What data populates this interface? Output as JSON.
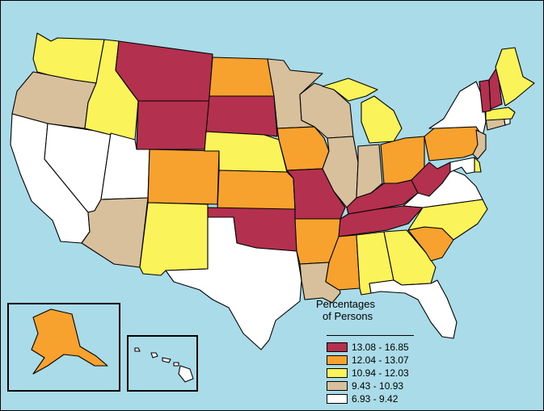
{
  "colors": {
    "background": "#a9dce8",
    "class_1": "#b3304f",
    "class_2": "#f7a22e",
    "class_3": "#fbf35a",
    "class_4": "#d8c09c",
    "class_5": "#ffffff"
  },
  "legend": {
    "title_line1": "Percentages",
    "title_line2": "of Persons",
    "items": [
      {
        "label": "13.08 - 16.85",
        "color": "#b3304f"
      },
      {
        "label": "12.04 - 13.07",
        "color": "#f7a22e"
      },
      {
        "label": "10.94 - 12.03",
        "color": "#fbf35a"
      },
      {
        "label": "9.43 - 10.93",
        "color": "#d8c09c"
      },
      {
        "label": "6.93 - 9.42",
        "color": "#ffffff"
      }
    ]
  },
  "states": [
    {
      "id": "WA",
      "class": 3
    },
    {
      "id": "OR",
      "class": 4
    },
    {
      "id": "CA",
      "class": 5
    },
    {
      "id": "ID",
      "class": 3
    },
    {
      "id": "NV",
      "class": 5
    },
    {
      "id": "MT",
      "class": 1
    },
    {
      "id": "WY",
      "class": 1
    },
    {
      "id": "UT",
      "class": 5
    },
    {
      "id": "AZ",
      "class": 4
    },
    {
      "id": "CO",
      "class": 2
    },
    {
      "id": "NM",
      "class": 3
    },
    {
      "id": "ND",
      "class": 2
    },
    {
      "id": "SD",
      "class": 1
    },
    {
      "id": "NE",
      "class": 3
    },
    {
      "id": "KS",
      "class": 2
    },
    {
      "id": "OK",
      "class": 1
    },
    {
      "id": "TX",
      "class": 5
    },
    {
      "id": "MN",
      "class": 4
    },
    {
      "id": "IA",
      "class": 2
    },
    {
      "id": "MO",
      "class": 1
    },
    {
      "id": "AR",
      "class": 2
    },
    {
      "id": "LA",
      "class": 4
    },
    {
      "id": "WI",
      "class": 4
    },
    {
      "id": "IL",
      "class": 4
    },
    {
      "id": "MI",
      "class": 3
    },
    {
      "id": "IN",
      "class": 4
    },
    {
      "id": "OH",
      "class": 2
    },
    {
      "id": "KY",
      "class": 1
    },
    {
      "id": "TN",
      "class": 1
    },
    {
      "id": "MS",
      "class": 2
    },
    {
      "id": "AL",
      "class": 3
    },
    {
      "id": "GA",
      "class": 3
    },
    {
      "id": "FL",
      "class": 5
    },
    {
      "id": "SC",
      "class": 2
    },
    {
      "id": "NC",
      "class": 3
    },
    {
      "id": "VA",
      "class": 5
    },
    {
      "id": "WV",
      "class": 1
    },
    {
      "id": "PA",
      "class": 2
    },
    {
      "id": "NY",
      "class": 5
    },
    {
      "id": "VT",
      "class": 1
    },
    {
      "id": "NH",
      "class": 1
    },
    {
      "id": "ME",
      "class": 3
    },
    {
      "id": "MA",
      "class": 3
    },
    {
      "id": "CT",
      "class": 4
    },
    {
      "id": "RI",
      "class": 5
    },
    {
      "id": "NJ",
      "class": 4
    },
    {
      "id": "DE",
      "class": 3
    },
    {
      "id": "MD",
      "class": 5
    },
    {
      "id": "AK",
      "class": 2
    },
    {
      "id": "HI",
      "class": 5
    }
  ]
}
